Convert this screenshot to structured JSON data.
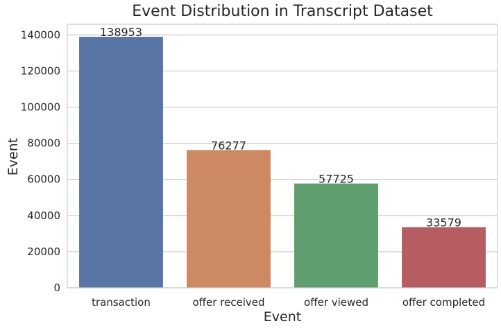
{
  "chart_data": {
    "type": "bar",
    "title": "Event Distribution in Transcript Dataset",
    "xlabel": "Event",
    "ylabel": "Event",
    "categories": [
      "transaction",
      "offer received",
      "offer viewed",
      "offer completed"
    ],
    "values": [
      138953,
      76277,
      57725,
      33579
    ],
    "data_labels": [
      "138953",
      "76277",
      "57725",
      "33579"
    ],
    "colors": [
      "#5975a4",
      "#cc8963",
      "#5f9e6e",
      "#b55d60"
    ],
    "ylim": [
      0,
      145897
    ],
    "yticks": [
      0,
      20000,
      40000,
      60000,
      80000,
      100000,
      120000,
      140000
    ],
    "ytick_labels": [
      "0",
      "20000",
      "40000",
      "60000",
      "80000",
      "100000",
      "120000",
      "140000"
    ],
    "grid": true,
    "grid_color": "#cccccc",
    "legend": "none"
  }
}
